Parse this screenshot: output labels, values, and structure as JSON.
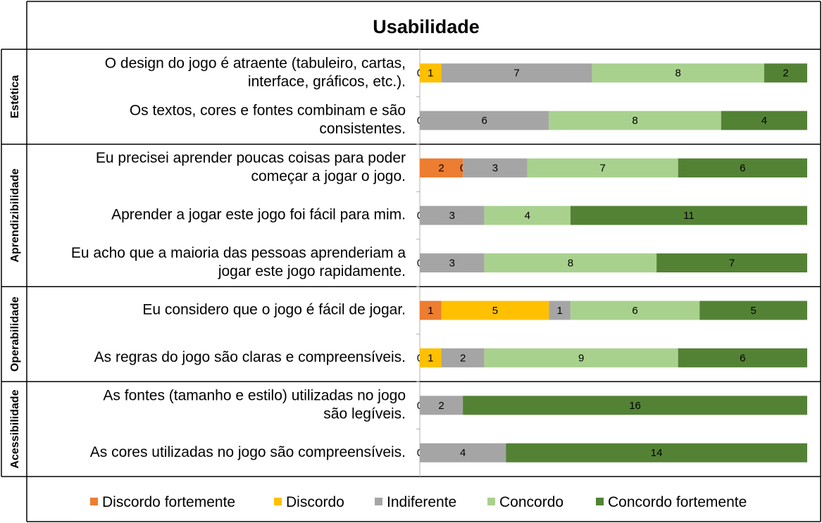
{
  "chart_data": {
    "type": "bar",
    "stacked": true,
    "orientation": "horizontal",
    "title": "Usabilidade",
    "series_names": [
      "Discordo fortemente",
      "Discordo",
      "Indiferente",
      "Concordo",
      "Concordo fortemente"
    ],
    "colors": [
      "#ED7D31",
      "#FFC000",
      "#A5A5A5",
      "#A9D18E",
      "#548235"
    ],
    "total": 18,
    "legend_position": "bottom",
    "groups": [
      {
        "name": "Estética",
        "items": [
          {
            "label": "O design do jogo é atraente (tabuleiro, cartas, interface, gráficos, etc.).",
            "values": [
              0,
              1,
              7,
              8,
              2
            ]
          },
          {
            "label": "Os textos, cores e fontes combinam e são consistentes.",
            "values": [
              0,
              0,
              6,
              8,
              4
            ]
          }
        ]
      },
      {
        "name": "Aprendizibilidade",
        "items": [
          {
            "label": "Eu precisei aprender poucas coisas para poder começar a jogar o jogo.",
            "values": [
              2,
              0,
              3,
              7,
              6
            ]
          },
          {
            "label": "Aprender a jogar este jogo foi fácil para mim.",
            "values": [
              0,
              0,
              3,
              4,
              11
            ]
          },
          {
            "label": "Eu acho que a maioria das pessoas aprenderiam a jogar este jogo rapidamente.",
            "values": [
              0,
              0,
              3,
              8,
              7
            ]
          }
        ]
      },
      {
        "name": "Operabilidade",
        "items": [
          {
            "label": "Eu considero que o jogo é fácil de jogar.",
            "values": [
              1,
              5,
              1,
              6,
              5
            ]
          },
          {
            "label": "As regras do jogo são claras e compreensíveis.",
            "values": [
              0,
              1,
              2,
              9,
              6
            ]
          }
        ]
      },
      {
        "name": "Acessibilidade",
        "items": [
          {
            "label": "As fontes (tamanho e estilo) utilizadas no jogo são legíveis.",
            "values": [
              0,
              0,
              2,
              0,
              16
            ]
          },
          {
            "label": "As cores utilizadas no jogo são compreensíveis.",
            "values": [
              0,
              0,
              4,
              0,
              14
            ]
          }
        ]
      }
    ]
  }
}
